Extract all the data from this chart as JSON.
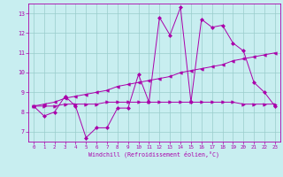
{
  "xlabel": "Windchill (Refroidissement éolien,°C)",
  "bg_color": "#c8eef0",
  "line_color": "#aa00aa",
  "grid_color": "#99cccc",
  "xlim": [
    -0.5,
    23.5
  ],
  "ylim": [
    6.5,
    13.5
  ],
  "yticks": [
    7,
    8,
    9,
    10,
    11,
    12,
    13
  ],
  "xticks": [
    0,
    1,
    2,
    3,
    4,
    5,
    6,
    7,
    8,
    9,
    10,
    11,
    12,
    13,
    14,
    15,
    16,
    17,
    18,
    19,
    20,
    21,
    22,
    23
  ],
  "series1": [
    8.3,
    7.8,
    8.0,
    8.8,
    8.3,
    6.7,
    7.2,
    7.2,
    8.2,
    8.2,
    9.9,
    8.5,
    12.8,
    11.9,
    13.3,
    8.5,
    12.7,
    12.3,
    12.4,
    11.5,
    11.1,
    9.5,
    9.0,
    8.3
  ],
  "series2": [
    8.3,
    8.3,
    8.3,
    8.4,
    8.4,
    8.4,
    8.4,
    8.5,
    8.5,
    8.5,
    8.5,
    8.5,
    8.5,
    8.5,
    8.5,
    8.5,
    8.5,
    8.5,
    8.5,
    8.5,
    8.4,
    8.4,
    8.4,
    8.4
  ],
  "series3": [
    8.3,
    8.4,
    8.5,
    8.7,
    8.8,
    8.9,
    9.0,
    9.1,
    9.3,
    9.4,
    9.5,
    9.6,
    9.7,
    9.8,
    10.0,
    10.1,
    10.2,
    10.3,
    10.4,
    10.6,
    10.7,
    10.8,
    10.9,
    11.0
  ]
}
